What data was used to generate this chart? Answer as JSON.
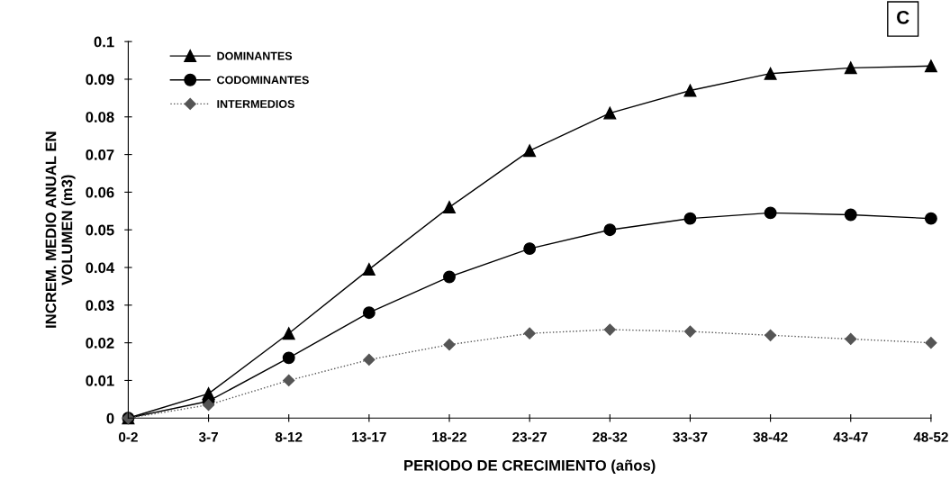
{
  "chart_data": {
    "type": "line",
    "xlabel": "PERIODO DE CRECIMIENTO (años)",
    "ylabel": "INCREM. MEDIO ANUAL EN\nVOLUMEN (m3)",
    "categories": [
      "0-2",
      "3-7",
      "8-12",
      "13-17",
      "18-22",
      "23-27",
      "28-32",
      "33-37",
      "38-42",
      "43-47",
      "48-52"
    ],
    "series": [
      {
        "name": "DOMINANTES",
        "color": "#000000",
        "marker": "triangle",
        "line_style": "solid",
        "values": [
          0,
          0.0065,
          0.0225,
          0.0395,
          0.056,
          0.071,
          0.081,
          0.087,
          0.0915,
          0.093,
          0.0935
        ]
      },
      {
        "name": "CODOMINANTES",
        "color": "#000000",
        "marker": "circle",
        "line_style": "solid",
        "values": [
          0,
          0.0045,
          0.016,
          0.028,
          0.0375,
          0.045,
          0.05,
          0.053,
          0.0545,
          0.054,
          0.053
        ]
      },
      {
        "name": "INTERMEDIOS",
        "color": "#555555",
        "marker": "diamond",
        "line_style": "dotted",
        "values": [
          0,
          0.0035,
          0.01,
          0.0155,
          0.0195,
          0.0225,
          0.0235,
          0.023,
          0.022,
          0.021,
          0.02
        ]
      }
    ],
    "ylim": [
      0,
      0.1
    ],
    "yticks": [
      0,
      0.01,
      0.02,
      0.03,
      0.04,
      0.05,
      0.06,
      0.07,
      0.08,
      0.09,
      0.1
    ],
    "grid": false,
    "legend": "top left",
    "annotations": [
      "C"
    ]
  }
}
